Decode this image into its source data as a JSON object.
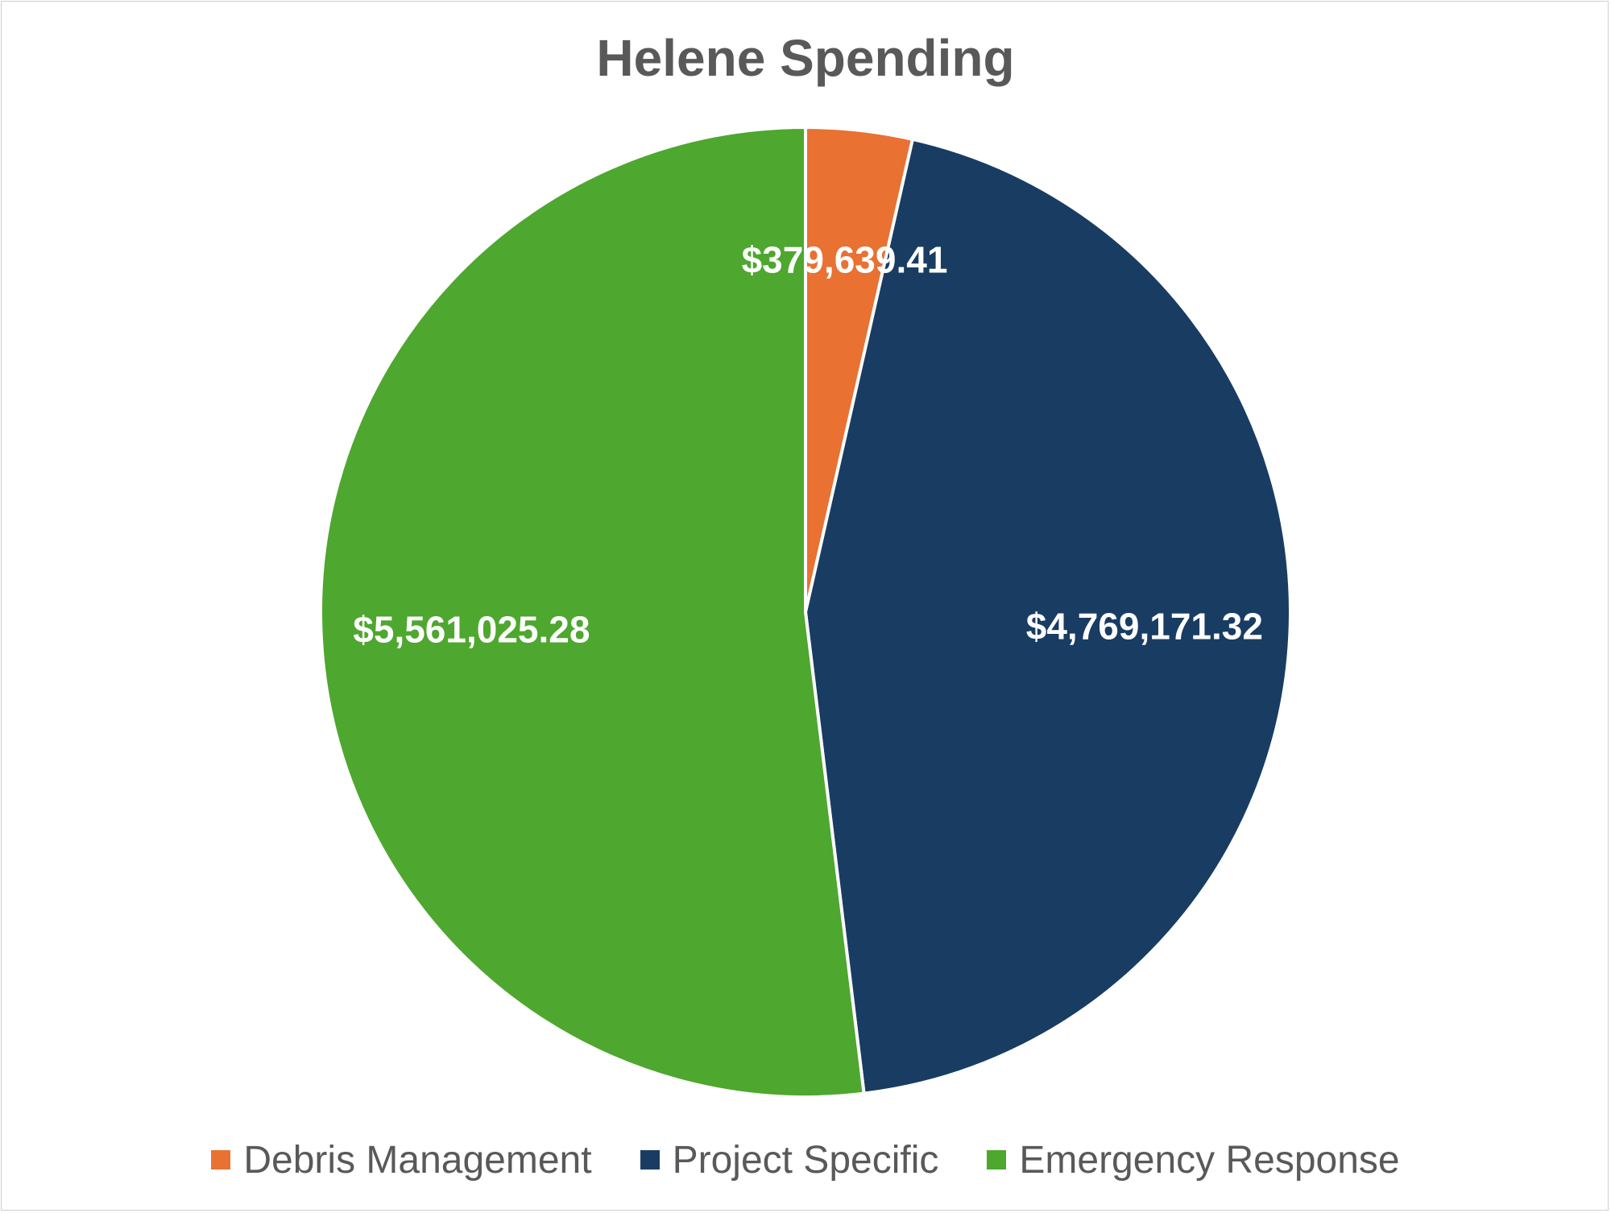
{
  "chart_data": {
    "type": "pie",
    "title": "Helene Spending",
    "categories": [
      "Debris Management",
      "Project Specific",
      "Emergency Response"
    ],
    "values": [
      379639.41,
      4769171.32,
      5561025.28
    ],
    "data_labels": [
      "$379,639.41",
      "$4,769,171.32",
      "$5,561,025.28"
    ],
    "colors": [
      "#E97132",
      "#193C63",
      "#4EA72E"
    ],
    "start_angle": "12 o'clock",
    "direction": "clockwise",
    "legend_position": "bottom"
  }
}
